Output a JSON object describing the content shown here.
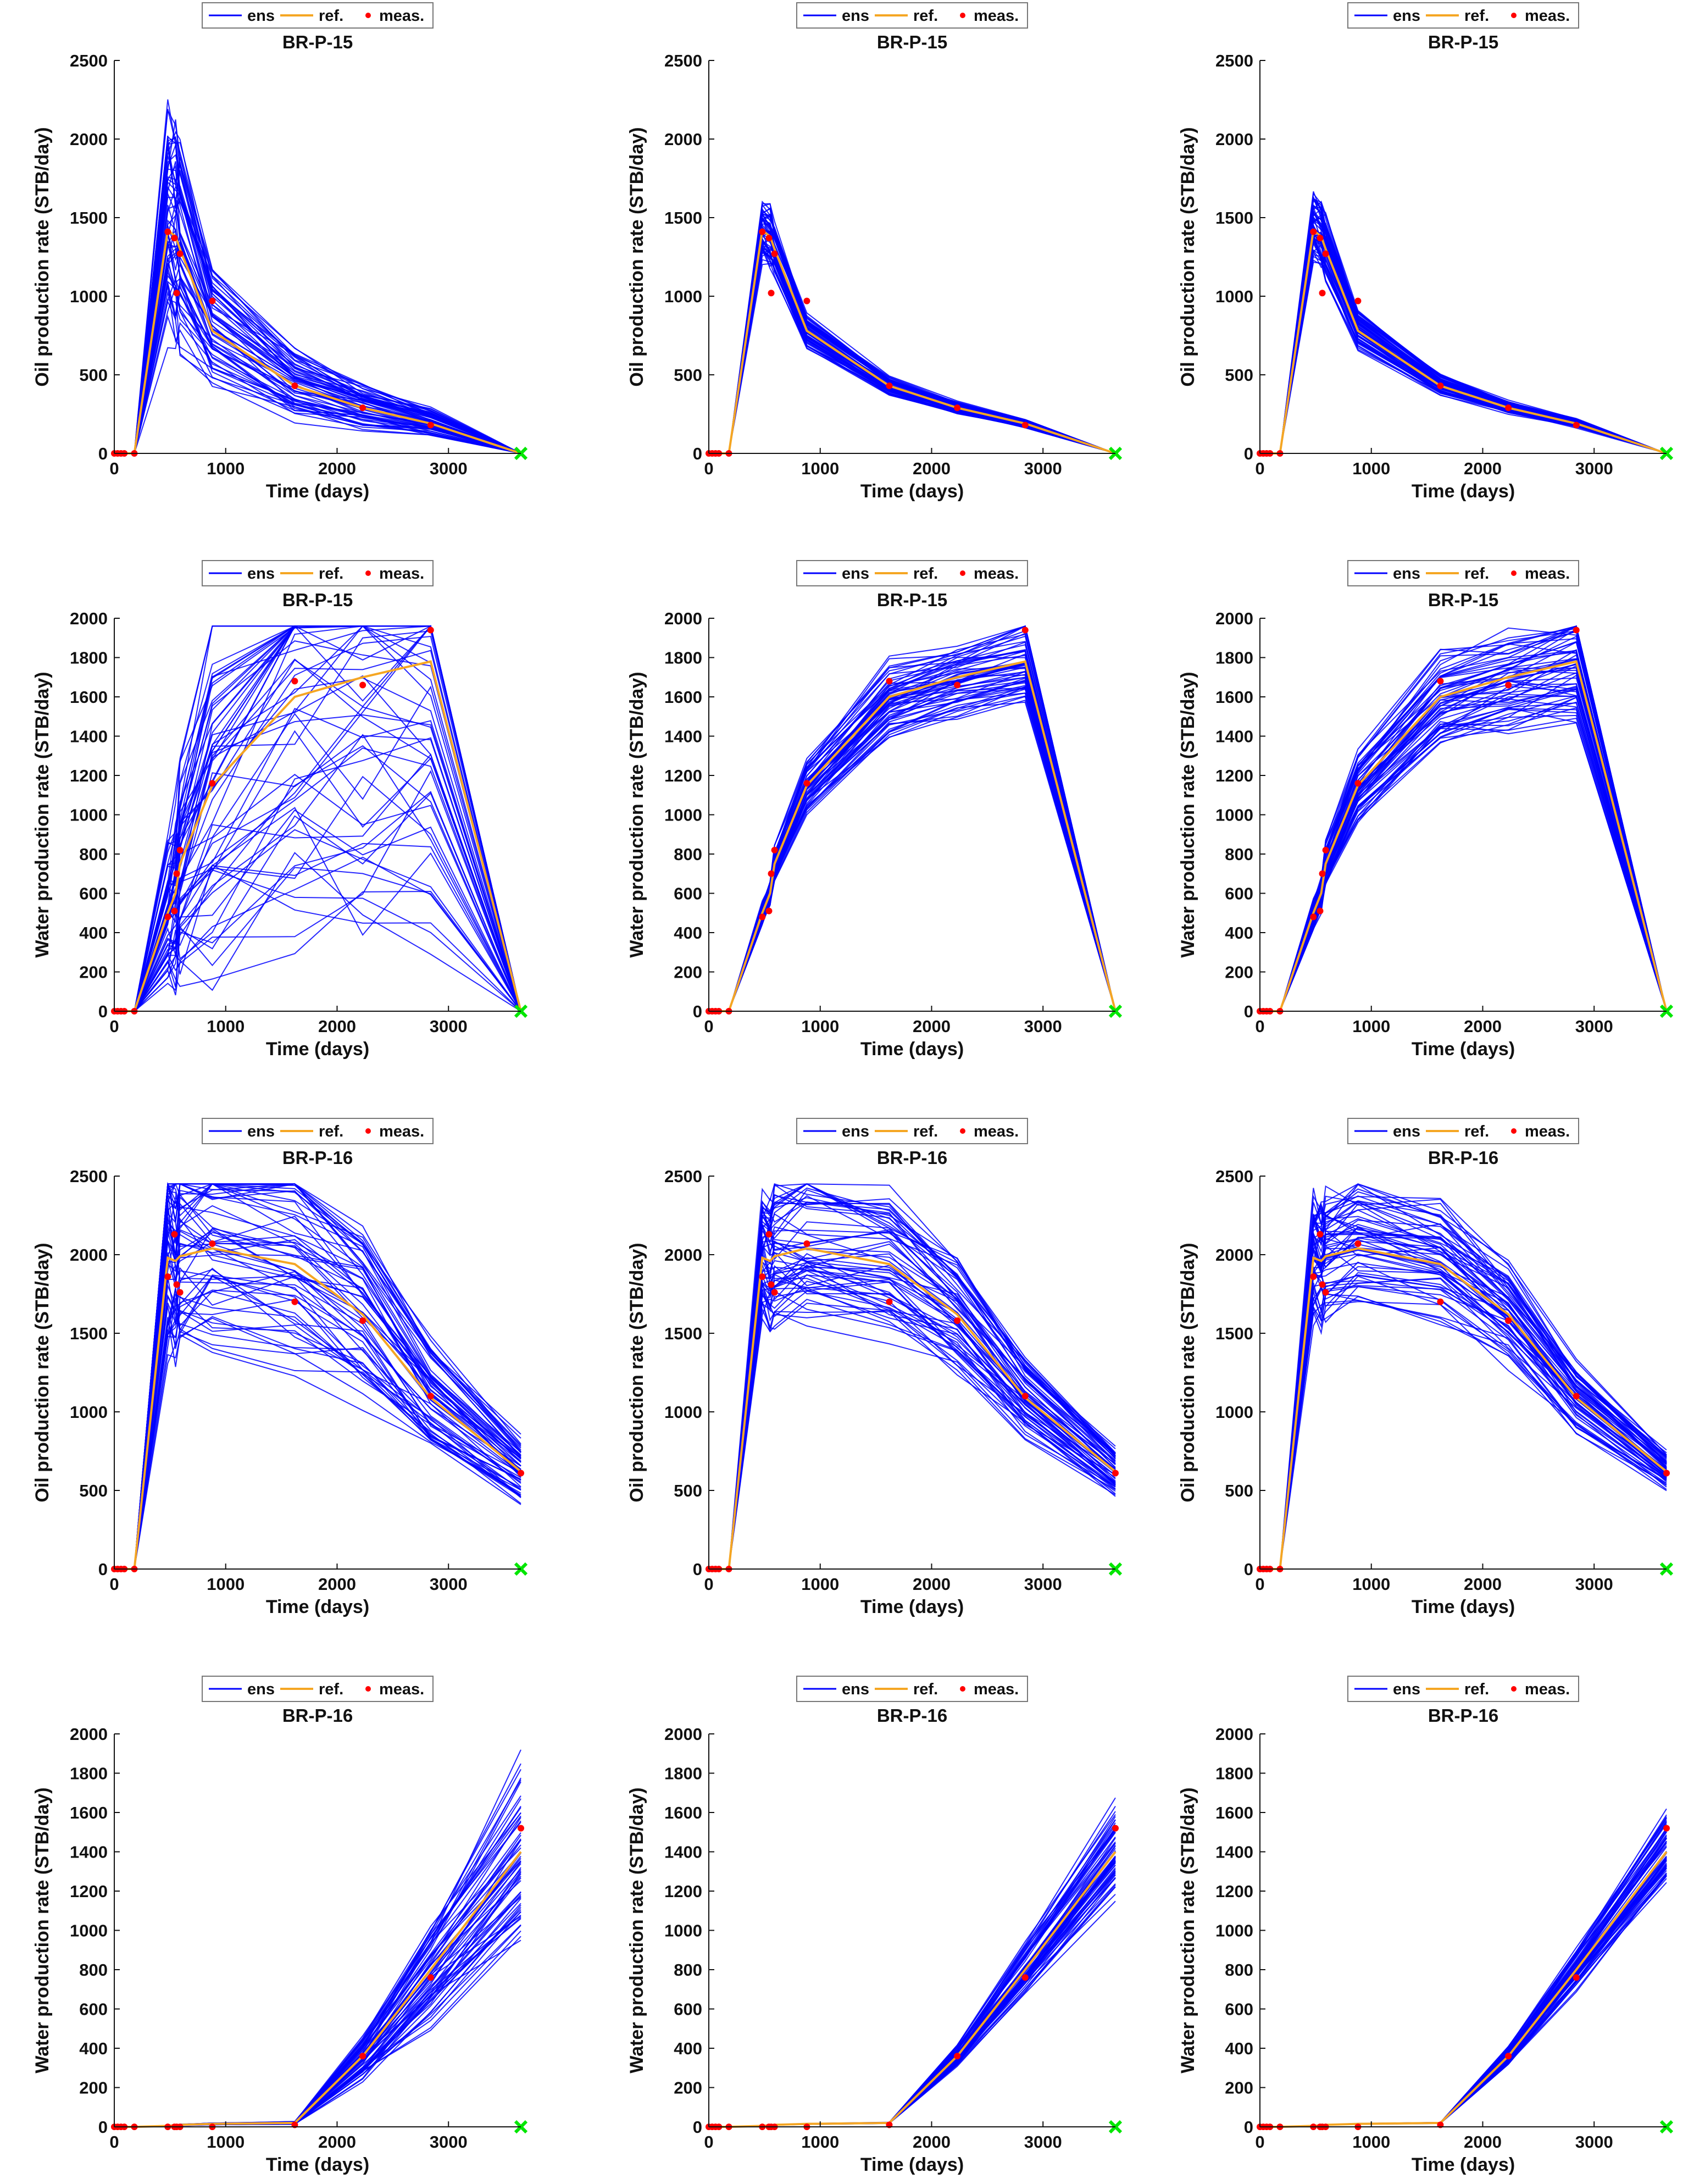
{
  "legend": {
    "ens": "ens",
    "ref": "ref.",
    "meas": "meas."
  },
  "colors": {
    "ens": "#0000ff",
    "ref": "#f5a623",
    "meas": "#ff0000",
    "marker": "#00e600",
    "axis": "#111111"
  },
  "xlabel": "Time (days)",
  "xticks": [
    0,
    1000,
    2000,
    3000
  ],
  "xlim": [
    0,
    3650
  ],
  "labels": {
    "oil": "Oil production rate (STB/day)",
    "water": "Water production rate (STB/day)"
  },
  "chart_data": [
    {
      "type": "line",
      "row": 0,
      "col": 0,
      "title": "BR-P-15",
      "quantity": "oil",
      "ylim": [
        0,
        2500
      ],
      "yticks": [
        0,
        500,
        1000,
        1500,
        2000,
        2500
      ],
      "x": [
        0,
        180,
        480,
        550,
        590,
        880,
        1620,
        2230,
        2840,
        3650
      ],
      "ref": [
        0,
        0,
        1420,
        1380,
        1300,
        780,
        430,
        290,
        190,
        0
      ],
      "meas_x": [
        0,
        30,
        60,
        90,
        180,
        480,
        540,
        560,
        590,
        880,
        1620,
        2230,
        2840
      ],
      "meas_y": [
        0,
        0,
        0,
        0,
        0,
        1410,
        1370,
        1020,
        1270,
        970,
        430,
        290,
        180
      ],
      "ensemble": {
        "members": 60,
        "spread": 0.45,
        "seed": 11
      }
    },
    {
      "type": "line",
      "row": 0,
      "col": 1,
      "title": "BR-P-15",
      "quantity": "oil",
      "ylim": [
        0,
        2500
      ],
      "yticks": [
        0,
        500,
        1000,
        1500,
        2000,
        2500
      ],
      "x": [
        0,
        180,
        480,
        550,
        590,
        880,
        1620,
        2230,
        2840,
        3650
      ],
      "ref": [
        0,
        0,
        1420,
        1380,
        1300,
        780,
        430,
        290,
        190,
        0
      ],
      "meas_x": [
        0,
        30,
        60,
        90,
        180,
        480,
        540,
        560,
        590,
        880,
        1620,
        2230,
        2840
      ],
      "meas_y": [
        0,
        0,
        0,
        0,
        0,
        1410,
        1370,
        1020,
        1270,
        970,
        430,
        290,
        180
      ],
      "ensemble": {
        "members": 60,
        "spread": 0.12,
        "seed": 12
      }
    },
    {
      "type": "line",
      "row": 0,
      "col": 2,
      "title": "BR-P-15",
      "quantity": "oil",
      "ylim": [
        0,
        2500
      ],
      "yticks": [
        0,
        500,
        1000,
        1500,
        2000,
        2500
      ],
      "x": [
        0,
        180,
        480,
        550,
        590,
        880,
        1620,
        2230,
        2840,
        3650
      ],
      "ref": [
        0,
        0,
        1420,
        1380,
        1300,
        780,
        430,
        290,
        190,
        0
      ],
      "meas_x": [
        0,
        30,
        60,
        90,
        180,
        480,
        540,
        560,
        590,
        880,
        1620,
        2230,
        2840
      ],
      "meas_y": [
        0,
        0,
        0,
        0,
        0,
        1410,
        1370,
        1020,
        1270,
        970,
        430,
        290,
        180
      ],
      "ensemble": {
        "members": 60,
        "spread": 0.14,
        "seed": 13
      }
    },
    {
      "type": "line",
      "row": 1,
      "col": 0,
      "title": "BR-P-15",
      "quantity": "water",
      "ylim": [
        0,
        2000
      ],
      "yticks": [
        0,
        200,
        400,
        600,
        800,
        1000,
        1200,
        1400,
        1600,
        1800,
        2000
      ],
      "x": [
        0,
        180,
        480,
        550,
        590,
        880,
        1620,
        2230,
        2840,
        3650
      ],
      "ref": [
        0,
        0,
        500,
        600,
        750,
        1150,
        1600,
        1700,
        1780,
        0
      ],
      "meas_x": [
        0,
        30,
        60,
        90,
        180,
        480,
        540,
        560,
        590,
        880,
        1620,
        2230,
        2840
      ],
      "meas_y": [
        0,
        0,
        0,
        0,
        0,
        480,
        510,
        700,
        820,
        1160,
        1680,
        1660,
        1940
      ],
      "ensemble": {
        "members": 60,
        "spread": 0.7,
        "seed": 21
      }
    },
    {
      "type": "line",
      "row": 1,
      "col": 1,
      "title": "BR-P-15",
      "quantity": "water",
      "ylim": [
        0,
        2000
      ],
      "yticks": [
        0,
        200,
        400,
        600,
        800,
        1000,
        1200,
        1400,
        1600,
        1800,
        2000
      ],
      "x": [
        0,
        180,
        480,
        550,
        590,
        880,
        1620,
        2230,
        2840,
        3650
      ],
      "ref": [
        0,
        0,
        500,
        600,
        750,
        1150,
        1600,
        1700,
        1780,
        0
      ],
      "meas_x": [
        0,
        30,
        60,
        90,
        180,
        480,
        540,
        560,
        590,
        880,
        1620,
        2230,
        2840
      ],
      "meas_y": [
        0,
        0,
        0,
        0,
        0,
        480,
        510,
        700,
        820,
        1160,
        1680,
        1660,
        1940
      ],
      "ensemble": {
        "members": 60,
        "spread": 0.1,
        "seed": 22
      }
    },
    {
      "type": "line",
      "row": 1,
      "col": 2,
      "title": "BR-P-15",
      "quantity": "water",
      "ylim": [
        0,
        2000
      ],
      "yticks": [
        0,
        200,
        400,
        600,
        800,
        1000,
        1200,
        1400,
        1600,
        1800,
        2000
      ],
      "x": [
        0,
        180,
        480,
        550,
        590,
        880,
        1620,
        2230,
        2840,
        3650
      ],
      "ref": [
        0,
        0,
        500,
        600,
        750,
        1150,
        1600,
        1700,
        1780,
        0
      ],
      "meas_x": [
        0,
        30,
        60,
        90,
        180,
        480,
        540,
        560,
        590,
        880,
        1620,
        2230,
        2840
      ],
      "meas_y": [
        0,
        0,
        0,
        0,
        0,
        480,
        510,
        700,
        820,
        1160,
        1680,
        1660,
        1940
      ],
      "ensemble": {
        "members": 60,
        "spread": 0.14,
        "seed": 23
      }
    },
    {
      "type": "line",
      "row": 2,
      "col": 0,
      "title": "BR-P-16",
      "quantity": "oil",
      "ylim": [
        0,
        2500
      ],
      "yticks": [
        0,
        500,
        1000,
        1500,
        2000,
        2500
      ],
      "x": [
        0,
        180,
        480,
        550,
        590,
        880,
        1620,
        2230,
        2840,
        3650
      ],
      "ref": [
        0,
        0,
        1980,
        1960,
        1990,
        2040,
        1940,
        1620,
        1090,
        620
      ],
      "meas_x": [
        0,
        30,
        60,
        90,
        180,
        480,
        540,
        560,
        590,
        880,
        1620,
        2230,
        2840,
        3650
      ],
      "meas_y": [
        0,
        0,
        0,
        0,
        0,
        1860,
        2130,
        1810,
        1760,
        2070,
        1700,
        1580,
        1100,
        610
      ],
      "ensemble": {
        "members": 60,
        "spread": 0.3,
        "seed": 31
      }
    },
    {
      "type": "line",
      "row": 2,
      "col": 1,
      "title": "BR-P-16",
      "quantity": "oil",
      "ylim": [
        0,
        2500
      ],
      "yticks": [
        0,
        500,
        1000,
        1500,
        2000,
        2500
      ],
      "x": [
        0,
        180,
        480,
        550,
        590,
        880,
        1620,
        2230,
        2840,
        3650
      ],
      "ref": [
        0,
        0,
        1980,
        1960,
        1990,
        2040,
        1940,
        1620,
        1090,
        620
      ],
      "meas_x": [
        0,
        30,
        60,
        90,
        180,
        480,
        540,
        560,
        590,
        880,
        1620,
        2230,
        2840,
        3650
      ],
      "meas_y": [
        0,
        0,
        0,
        0,
        0,
        1860,
        2130,
        1810,
        1760,
        2070,
        1700,
        1580,
        1100,
        610
      ],
      "ensemble": {
        "members": 60,
        "spread": 0.2,
        "seed": 32
      }
    },
    {
      "type": "line",
      "row": 2,
      "col": 2,
      "title": "BR-P-16",
      "quantity": "oil",
      "ylim": [
        0,
        2500
      ],
      "yticks": [
        0,
        500,
        1000,
        1500,
        2000,
        2500
      ],
      "x": [
        0,
        180,
        480,
        550,
        590,
        880,
        1620,
        2230,
        2840,
        3650
      ],
      "ref": [
        0,
        0,
        1980,
        1960,
        1990,
        2040,
        1940,
        1620,
        1090,
        620
      ],
      "meas_x": [
        0,
        30,
        60,
        90,
        180,
        480,
        540,
        560,
        590,
        880,
        1620,
        2230,
        2840,
        3650
      ],
      "meas_y": [
        0,
        0,
        0,
        0,
        0,
        1860,
        2130,
        1810,
        1760,
        2070,
        1700,
        1580,
        1100,
        610
      ],
      "ensemble": {
        "members": 60,
        "spread": 0.18,
        "seed": 33
      }
    },
    {
      "type": "line",
      "row": 3,
      "col": 0,
      "title": "BR-P-16",
      "quantity": "water",
      "ylim": [
        0,
        2000
      ],
      "yticks": [
        0,
        200,
        400,
        600,
        800,
        1000,
        1200,
        1400,
        1600,
        1800,
        2000
      ],
      "x": [
        0,
        180,
        480,
        550,
        590,
        880,
        1620,
        2230,
        2840,
        3650
      ],
      "ref": [
        0,
        0,
        5,
        8,
        10,
        15,
        20,
        360,
        800,
        1400
      ],
      "meas_x": [
        0,
        30,
        60,
        90,
        180,
        480,
        540,
        560,
        590,
        880,
        1620,
        2230,
        2840,
        3650
      ],
      "meas_y": [
        0,
        0,
        0,
        0,
        0,
        0,
        0,
        0,
        0,
        0,
        10,
        360,
        760,
        1520
      ],
      "ensemble": {
        "members": 60,
        "spread": 0.3,
        "seed": 41
      }
    },
    {
      "type": "line",
      "row": 3,
      "col": 1,
      "title": "BR-P-16",
      "quantity": "water",
      "ylim": [
        0,
        2000
      ],
      "yticks": [
        0,
        200,
        400,
        600,
        800,
        1000,
        1200,
        1400,
        1600,
        1800,
        2000
      ],
      "x": [
        0,
        180,
        480,
        550,
        590,
        880,
        1620,
        2230,
        2840,
        3650
      ],
      "ref": [
        0,
        0,
        5,
        8,
        10,
        15,
        20,
        360,
        800,
        1400
      ],
      "meas_x": [
        0,
        30,
        60,
        90,
        180,
        480,
        540,
        560,
        590,
        880,
        1620,
        2230,
        2840,
        3650
      ],
      "meas_y": [
        0,
        0,
        0,
        0,
        0,
        0,
        0,
        0,
        0,
        0,
        10,
        360,
        760,
        1520
      ],
      "ensemble": {
        "members": 60,
        "spread": 0.15,
        "seed": 42
      }
    },
    {
      "type": "line",
      "row": 3,
      "col": 2,
      "title": "BR-P-16",
      "quantity": "water",
      "ylim": [
        0,
        2000
      ],
      "yticks": [
        0,
        200,
        400,
        600,
        800,
        1000,
        1200,
        1400,
        1600,
        1800,
        2000
      ],
      "x": [
        0,
        180,
        480,
        550,
        590,
        880,
        1620,
        2230,
        2840,
        3650
      ],
      "ref": [
        0,
        0,
        5,
        8,
        10,
        15,
        20,
        360,
        800,
        1400
      ],
      "meas_x": [
        0,
        30,
        60,
        90,
        180,
        480,
        540,
        560,
        590,
        880,
        1620,
        2230,
        2840,
        3650
      ],
      "meas_y": [
        0,
        0,
        0,
        0,
        0,
        0,
        0,
        0,
        0,
        0,
        10,
        360,
        760,
        1520
      ],
      "ensemble": {
        "members": 60,
        "spread": 0.12,
        "seed": 43
      }
    }
  ]
}
